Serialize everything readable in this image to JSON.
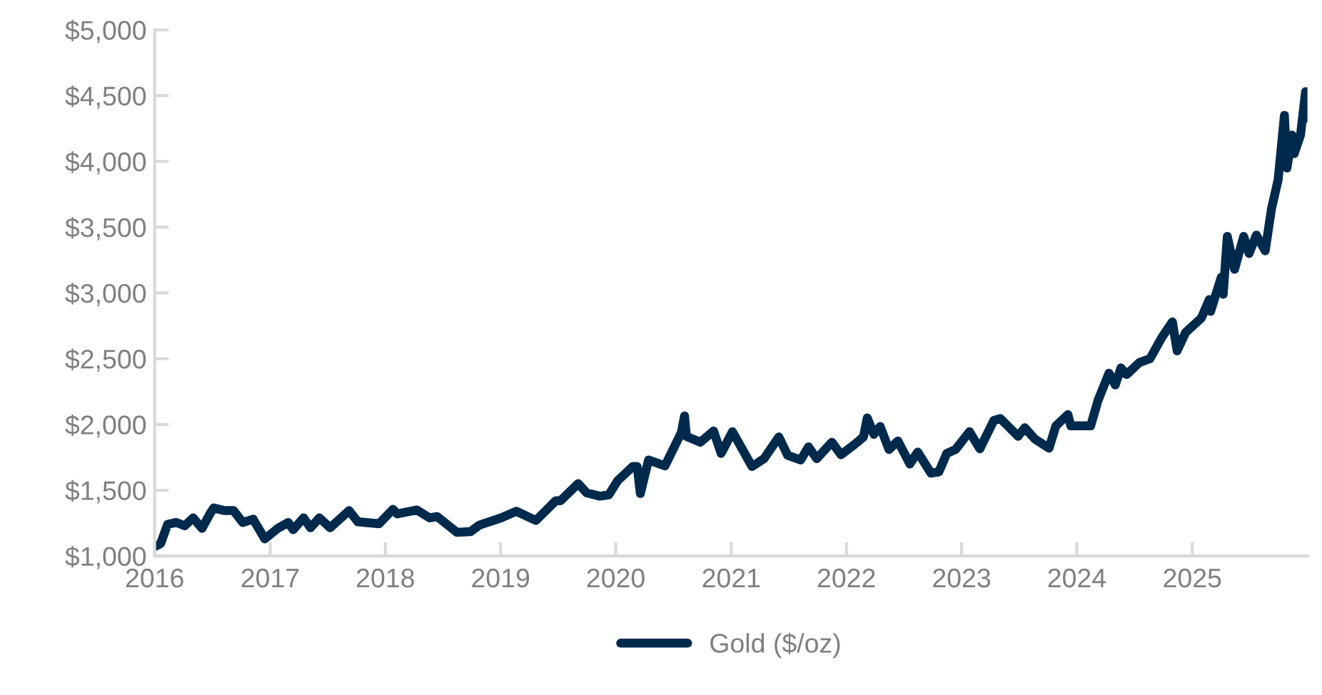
{
  "chart_data": {
    "type": "line",
    "x": [
      "2016-01-04",
      "2016-01-20",
      "2016-02-11",
      "2016-03-10",
      "2016-04-05",
      "2016-05-02",
      "2016-05-30",
      "2016-06-24",
      "2016-07-06",
      "2016-08-10",
      "2016-09-07",
      "2016-10-06",
      "2016-11-08",
      "2016-12-15",
      "2017-01-25",
      "2017-02-27",
      "2017-03-15",
      "2017-04-17",
      "2017-05-09",
      "2017-06-06",
      "2017-07-10",
      "2017-09-08",
      "2017-10-06",
      "2017-12-12",
      "2018-01-25",
      "2018-02-08",
      "2018-04-11",
      "2018-05-21",
      "2018-06-14",
      "2018-08-16",
      "2018-09-28",
      "2018-10-26",
      "2019-01-03",
      "2019-02-20",
      "2019-04-23",
      "2019-06-25",
      "2019-07-10",
      "2019-09-04",
      "2019-10-01",
      "2019-11-12",
      "2019-12-10",
      "2020-01-08",
      "2020-02-24",
      "2020-03-09",
      "2020-03-19",
      "2020-04-14",
      "2020-06-05",
      "2020-07-27",
      "2020-08-06",
      "2020-08-12",
      "2020-09-25",
      "2020-11-06",
      "2020-11-30",
      "2021-01-05",
      "2021-03-08",
      "2021-04-15",
      "2021-06-01",
      "2021-06-29",
      "2021-08-09",
      "2021-09-03",
      "2021-09-29",
      "2021-11-16",
      "2021-12-15",
      "2022-01-25",
      "2022-02-24",
      "2022-03-08",
      "2022-03-29",
      "2022-04-18",
      "2022-05-16",
      "2022-06-13",
      "2022-07-21",
      "2022-08-15",
      "2022-09-26",
      "2022-10-21",
      "2022-11-15",
      "2022-12-13",
      "2023-01-26",
      "2023-02-28",
      "2023-04-13",
      "2023-05-04",
      "2023-06-29",
      "2023-07-20",
      "2023-08-21",
      "2023-10-05",
      "2023-10-27",
      "2023-12-04",
      "2023-12-13",
      "2024-02-14",
      "2024-03-08",
      "2024-04-12",
      "2024-05-02",
      "2024-05-20",
      "2024-06-07",
      "2024-07-17",
      "2024-08-20",
      "2024-09-26",
      "2024-10-30",
      "2024-11-14",
      "2024-12-11",
      "2025-01-30",
      "2025-02-24",
      "2025-02-28",
      "2025-04-03",
      "2025-04-09",
      "2025-04-22",
      "2025-05-15",
      "2025-06-13",
      "2025-06-30",
      "2025-07-23",
      "2025-08-20",
      "2025-09-09",
      "2025-09-30",
      "2025-10-20",
      "2025-10-28",
      "2025-11-13",
      "2025-11-20",
      "2025-12-10",
      "2025-12-26",
      "2025-12-31"
    ],
    "series": [
      {
        "name": "Gold ($/oz)",
        "color": "#002a4c",
        "values": [
          1075,
          1095,
          1240,
          1255,
          1230,
          1290,
          1210,
          1320,
          1365,
          1345,
          1345,
          1255,
          1280,
          1130,
          1210,
          1255,
          1200,
          1290,
          1215,
          1290,
          1215,
          1345,
          1260,
          1245,
          1355,
          1320,
          1350,
          1290,
          1300,
          1180,
          1185,
          1235,
          1290,
          1340,
          1270,
          1420,
          1420,
          1550,
          1480,
          1455,
          1465,
          1575,
          1680,
          1680,
          1475,
          1730,
          1685,
          1940,
          2065,
          1910,
          1865,
          1950,
          1780,
          1945,
          1680,
          1740,
          1905,
          1765,
          1730,
          1830,
          1740,
          1865,
          1770,
          1845,
          1905,
          2050,
          1925,
          1985,
          1810,
          1875,
          1700,
          1790,
          1630,
          1640,
          1780,
          1810,
          1945,
          1815,
          2030,
          2045,
          1910,
          1975,
          1890,
          1820,
          1990,
          2075,
          1990,
          1990,
          2180,
          2390,
          2300,
          2430,
          2380,
          2470,
          2500,
          2660,
          2780,
          2560,
          2700,
          2810,
          2950,
          2860,
          3120,
          2990,
          3430,
          3180,
          3430,
          3300,
          3440,
          3320,
          3640,
          3860,
          4350,
          3950,
          4200,
          4060,
          4200,
          4530,
          4330
        ]
      }
    ],
    "xlim": [
      "2016-01-01",
      "2026-01-01"
    ],
    "xticks": [
      "2016",
      "2017",
      "2018",
      "2019",
      "2020",
      "2021",
      "2022",
      "2023",
      "2024",
      "2025"
    ],
    "ylim": [
      1000,
      5000
    ],
    "yticks": [
      {
        "value": 1000,
        "label": "$1,000"
      },
      {
        "value": 1500,
        "label": "$1,500"
      },
      {
        "value": 2000,
        "label": "$2,000"
      },
      {
        "value": 2500,
        "label": "$2,500"
      },
      {
        "value": 3000,
        "label": "$3,000"
      },
      {
        "value": 3500,
        "label": "$3,500"
      },
      {
        "value": 4000,
        "label": "$4,000"
      },
      {
        "value": 4500,
        "label": "$4,500"
      },
      {
        "value": 5000,
        "label": "$5,000"
      }
    ],
    "legend": "bottom",
    "grid": false,
    "marker": "none",
    "line_style": "solid"
  }
}
